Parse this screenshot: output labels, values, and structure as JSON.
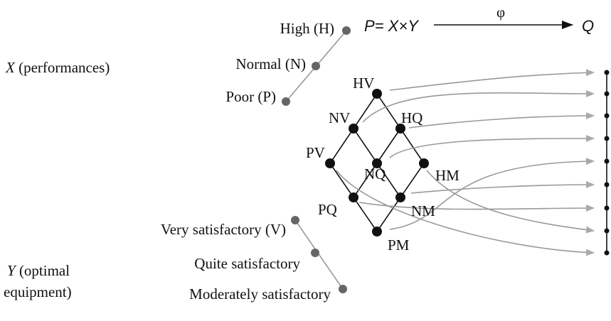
{
  "x_axis": {
    "variable": "X",
    "label": "(performances)",
    "levels": [
      "High (H)",
      "Normal (N)",
      "Poor (P)"
    ]
  },
  "y_axis": {
    "variable": "Y",
    "label_lines": [
      "(optimal",
      "equipment)"
    ],
    "levels": [
      "Very satisfactory (V)",
      "Quite satisfactory",
      "Moderately satisfactory"
    ]
  },
  "mapping": {
    "product": "P",
    "equals": "=",
    "left": "X",
    "times": "×",
    "right": "Y",
    "arrow_label": "φ",
    "target": "Q"
  },
  "nodes": [
    {
      "label": "HV"
    },
    {
      "label": "NV"
    },
    {
      "label": "HQ"
    },
    {
      "label": "PV"
    },
    {
      "label": "NQ"
    },
    {
      "label": "HM"
    },
    {
      "label": "PQ"
    },
    {
      "label": "NM"
    },
    {
      "label": "PM"
    }
  ]
}
